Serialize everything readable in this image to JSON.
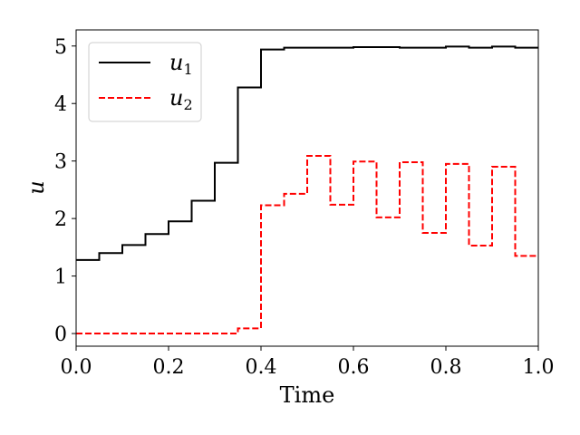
{
  "chart_data": {
    "type": "line",
    "step": true,
    "xlabel": "Time",
    "ylabel": "u",
    "xlim": [
      0.0,
      1.0
    ],
    "ylim": [
      -0.22,
      5.28
    ],
    "xticks": [
      0.0,
      0.2,
      0.4,
      0.6,
      0.8,
      1.0
    ],
    "xtick_labels": [
      "0.0",
      "0.2",
      "0.4",
      "0.6",
      "0.8",
      "1.0"
    ],
    "yticks": [
      0,
      1,
      2,
      3,
      4,
      5
    ],
    "ytick_labels": [
      "0",
      "1",
      "2",
      "3",
      "4",
      "5"
    ],
    "legend_position": "top-left",
    "grid": false,
    "x": [
      0.0,
      0.05,
      0.1,
      0.15,
      0.2,
      0.25,
      0.3,
      0.35,
      0.4,
      0.45,
      0.5,
      0.55,
      0.6,
      0.65,
      0.7,
      0.75,
      0.8,
      0.85,
      0.9,
      0.95,
      1.0
    ],
    "series": [
      {
        "name": "u",
        "subscript": "1",
        "color": "#000000",
        "dash": "solid",
        "values": [
          1.28,
          1.4,
          1.54,
          1.73,
          1.95,
          2.31,
          2.97,
          4.28,
          4.94,
          4.97,
          4.97,
          4.97,
          4.98,
          4.98,
          4.97,
          4.97,
          4.99,
          4.97,
          4.99,
          4.97,
          4.97
        ]
      },
      {
        "name": "u",
        "subscript": "2",
        "color": "#ff0000",
        "dash": "dashed",
        "values": [
          0.0,
          0.0,
          0.0,
          0.0,
          0.0,
          0.0,
          0.0,
          0.09,
          2.23,
          2.43,
          3.09,
          2.24,
          2.99,
          2.02,
          2.98,
          1.75,
          2.95,
          1.53,
          2.9,
          1.35,
          1.35
        ]
      }
    ]
  }
}
